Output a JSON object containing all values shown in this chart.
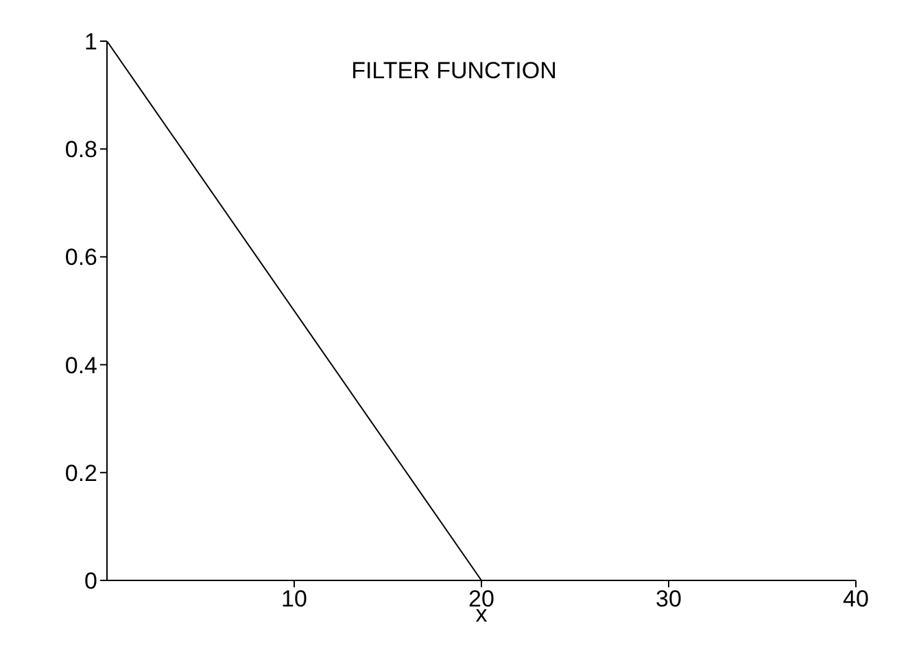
{
  "chart_data": {
    "type": "line",
    "title": "FILTER FUNCTION",
    "xlabel": "x",
    "x": [
      0,
      20,
      40
    ],
    "series": [
      {
        "color": "#000000",
        "values": [
          1,
          0,
          0
        ]
      }
    ],
    "xlim": [
      0,
      40
    ],
    "xticks": [
      10,
      20,
      30,
      40
    ],
    "ylim": [
      0,
      1
    ],
    "yticks": [
      0,
      0.2,
      0.4,
      0.6,
      0.8,
      1
    ],
    "grid": false,
    "legend": false,
    "marker": "none",
    "line_style": "solid"
  }
}
